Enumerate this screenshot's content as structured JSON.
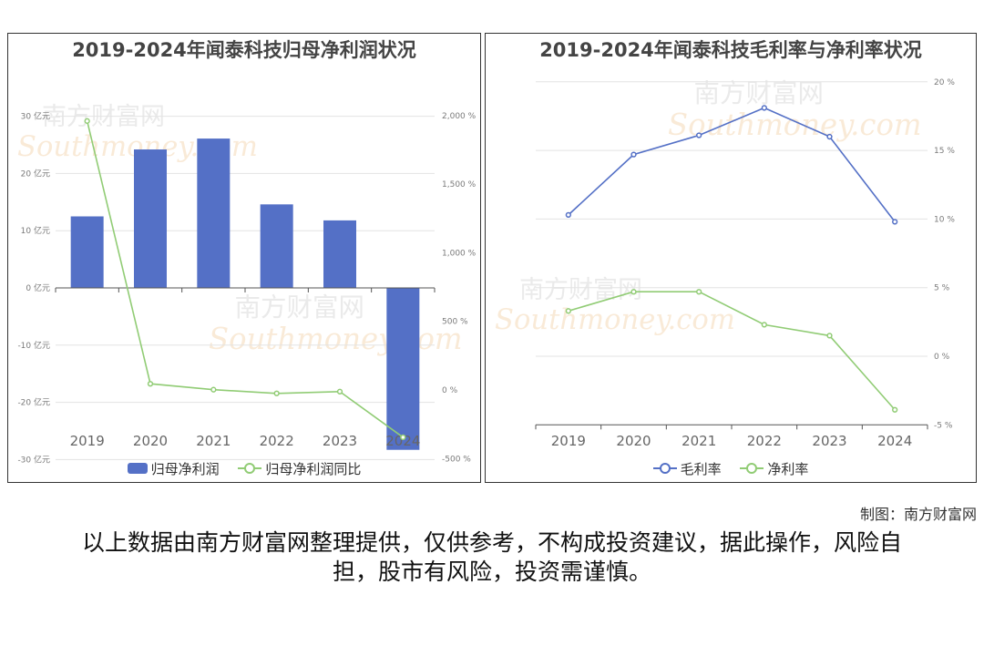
{
  "credit": "制图：南方财富网",
  "disclaimer": "以上数据由南方财富网整理提供，仅供参考，不构成投资建议，据此操作，风险自担，股市有风险，投资需谨慎。",
  "watermark": {
    "cn": "南方财富网",
    "en": "Southmoney.com",
    "color": "#f5d9b8"
  },
  "chart_data": [
    {
      "type": "bar",
      "title": "2019-2024年闻泰科技归母净利润状况",
      "categories": [
        "2019",
        "2020",
        "2021",
        "2022",
        "2023",
        "2024"
      ],
      "grid": true,
      "legend_position": "bottom",
      "left_axis": {
        "ticks": [
          "30 亿元",
          "20 亿元",
          "10 亿元",
          "0 亿元",
          "-10 亿元",
          "-20 亿元",
          "-30 亿元"
        ],
        "range": [
          -30,
          30
        ]
      },
      "right_axis": {
        "ticks": [
          "2,000 %",
          "1,500 %",
          "1,000 %",
          "500 %",
          "0 %",
          "-500 %"
        ],
        "range": [
          -500,
          2000
        ]
      },
      "series": [
        {
          "name": "归母净利润",
          "type": "bar",
          "axis": "left",
          "color": "#5470c6",
          "values": [
            12.5,
            24.2,
            26.1,
            14.6,
            11.8,
            -28.3
          ]
        },
        {
          "name": "归母净利润同比",
          "type": "line",
          "axis": "right",
          "color": "#91cc75",
          "values": [
            1960,
            45,
            2,
            -25,
            -12,
            -345
          ]
        }
      ]
    },
    {
      "type": "line",
      "title": "2019-2024年闻泰科技毛利率与净利率状况",
      "categories": [
        "2019",
        "2020",
        "2021",
        "2022",
        "2023",
        "2024"
      ],
      "grid": true,
      "legend_position": "bottom",
      "right_axis": {
        "ticks": [
          "20 %",
          "15 %",
          "10 %",
          "5 %",
          "0 %",
          "-5 %"
        ],
        "range": [
          -5,
          20
        ]
      },
      "series": [
        {
          "name": "毛利率",
          "type": "line",
          "axis": "right",
          "color": "#5470c6",
          "values": [
            10.3,
            14.7,
            16.1,
            18.1,
            16.0,
            9.8
          ]
        },
        {
          "name": "净利率",
          "type": "line",
          "axis": "right",
          "color": "#91cc75",
          "values": [
            3.3,
            4.7,
            4.7,
            2.3,
            1.5,
            -3.9
          ]
        }
      ]
    }
  ]
}
